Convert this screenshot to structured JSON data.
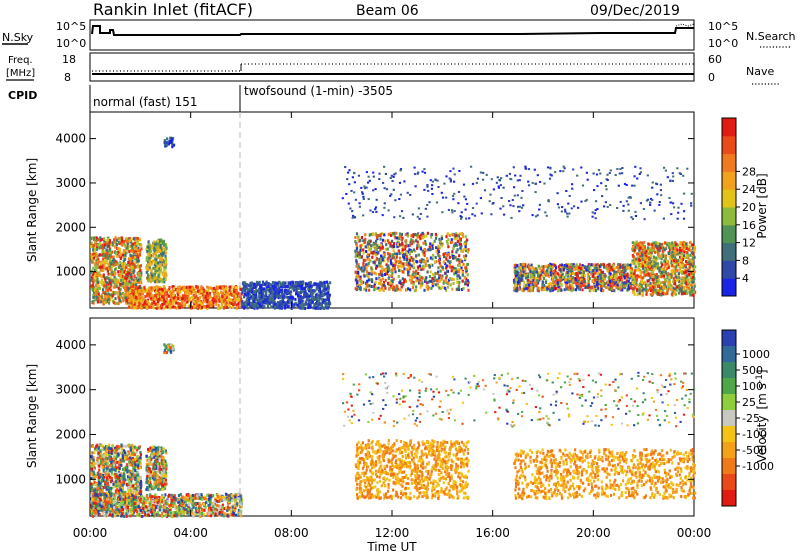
{
  "header": {
    "station": "Rankin Inlet (fitACF)",
    "beam": "Beam 06",
    "date": "09/Dec/2019"
  },
  "noise_panel": {
    "left_label": "N.Sky",
    "left_ticks": [
      "10^5",
      "10^0"
    ],
    "right_label": "N.Search",
    "right_ticks": [
      "10^5",
      "10^0"
    ]
  },
  "freq_panel": {
    "left_label_1": "Freq.",
    "left_label_2": "[MHz]",
    "left_ticks": [
      "18",
      "8"
    ],
    "right_label": "Nave",
    "right_ticks": [
      "60",
      "0"
    ]
  },
  "cpid_panel": {
    "label": "CPID",
    "modes": [
      "normal (fast) 151",
      "twofsound (1-min) -3505"
    ]
  },
  "time_axis": {
    "title": "Time UT",
    "ticks": [
      "00:00",
      "04:00",
      "08:00",
      "12:00",
      "16:00",
      "20:00",
      "00:00"
    ]
  },
  "chart_data": [
    {
      "type": "heatmap",
      "quantity": "power",
      "ylabel": "Slant Range [km]",
      "yticks": [
        1000,
        2000,
        3000,
        4000
      ],
      "ylim": [
        180,
        4600
      ],
      "xlim_hours": [
        0,
        24
      ],
      "colorbar": {
        "label": "Power [dB]",
        "ticks": [
          "4",
          "8",
          "12",
          "16",
          "20",
          "24",
          "28"
        ],
        "colors": [
          "#1a24e6",
          "#2f49a8",
          "#3f6f78",
          "#4f9455",
          "#8fbb3a",
          "#e2c418",
          "#f0a21c",
          "#f07a1f",
          "#ea4a18",
          "#e21b12"
        ]
      },
      "echo_regions": [
        {
          "t0": 0.0,
          "t1": 2.0,
          "r0": 300,
          "r1": 1800,
          "level": "mixed-high"
        },
        {
          "t0": 2.2,
          "t1": 3.0,
          "r0": 800,
          "r1": 1750,
          "level": "medium"
        },
        {
          "t0": 2.9,
          "t1": 3.3,
          "r0": 3850,
          "r1": 4050,
          "level": "low"
        },
        {
          "t0": 1.5,
          "t1": 6.0,
          "r0": 200,
          "r1": 700,
          "level": "high"
        },
        {
          "t0": 6.0,
          "t1": 9.5,
          "r0": 200,
          "r1": 800,
          "level": "low"
        },
        {
          "t0": 10.5,
          "t1": 15.0,
          "r0": 600,
          "r1": 1900,
          "level": "mixed"
        },
        {
          "t0": 16.8,
          "t1": 21.5,
          "r0": 600,
          "r1": 1200,
          "level": "mixed"
        },
        {
          "t0": 21.5,
          "t1": 24.0,
          "r0": 500,
          "r1": 1700,
          "level": "mixed-high"
        },
        {
          "t0": 10.0,
          "t1": 24.0,
          "r0": 2200,
          "r1": 3400,
          "level": "sparse-low"
        }
      ]
    },
    {
      "type": "heatmap",
      "quantity": "velocity",
      "ylabel": "Slant Range [km]",
      "yticks": [
        1000,
        2000,
        3000,
        4000
      ],
      "ylim": [
        180,
        4600
      ],
      "xlim_hours": [
        0,
        24
      ],
      "colorbar": {
        "label_main": "Velocity",
        "label_unit": "[m s",
        "label_exp": "-1",
        "label_close": "]",
        "ticks": [
          "1000",
          "500",
          "100",
          "25",
          "-25",
          "-100",
          "-500",
          "-1000"
        ],
        "colors": [
          "#2a3fb0",
          "#2f6a9a",
          "#3a8a6a",
          "#4fa848",
          "#8ccf3a",
          "#c8c8c0",
          "#f5c216",
          "#f5a118",
          "#f07a18",
          "#ea4818",
          "#e21b12"
        ]
      },
      "echo_regions": [
        {
          "t0": 0.0,
          "t1": 2.0,
          "r0": 300,
          "r1": 1800,
          "level": "mixed"
        },
        {
          "t0": 2.2,
          "t1": 3.0,
          "r0": 800,
          "r1": 1750,
          "level": "mixed"
        },
        {
          "t0": 2.9,
          "t1": 3.3,
          "r0": 3850,
          "r1": 4050,
          "level": "mixed"
        },
        {
          "t0": 0.0,
          "t1": 6.0,
          "r0": 200,
          "r1": 700,
          "level": "mixed"
        },
        {
          "t0": 10.5,
          "t1": 15.0,
          "r0": 600,
          "r1": 1900,
          "level": "negative"
        },
        {
          "t0": 16.8,
          "t1": 24.0,
          "r0": 600,
          "r1": 1700,
          "level": "negative"
        },
        {
          "t0": 10.0,
          "t1": 24.0,
          "r0": 2200,
          "r1": 3400,
          "level": "sparse"
        }
      ]
    }
  ]
}
